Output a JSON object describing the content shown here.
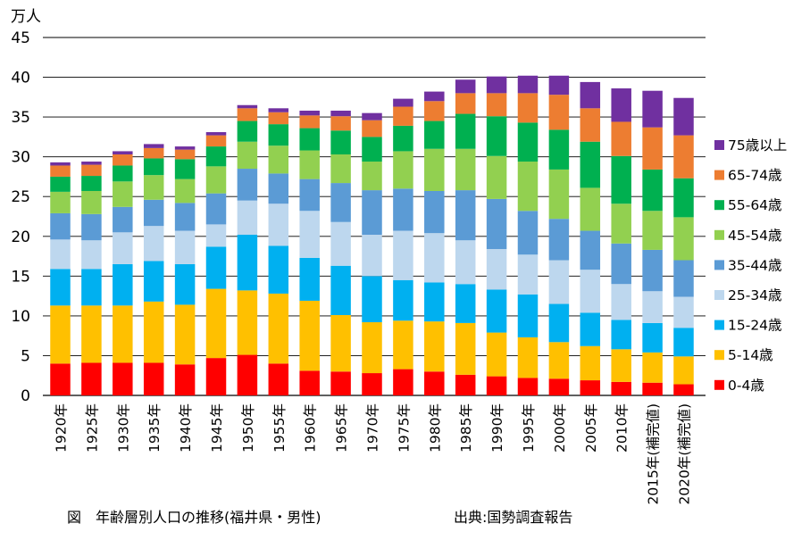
{
  "chart_data": {
    "type": "bar",
    "stacked": true,
    "title": "",
    "ylabel": "万人",
    "xlabel": "",
    "ylim": [
      0,
      45
    ],
    "yticks": [
      0,
      5,
      10,
      15,
      20,
      25,
      30,
      35,
      40,
      45
    ],
    "grid": true,
    "legend_position": "right",
    "categories": [
      "1920年",
      "1925年",
      "1930年",
      "1935年",
      "1940年",
      "1945年",
      "1950年",
      "1955年",
      "1960年",
      "1965年",
      "1970年",
      "1975年",
      "1980年",
      "1985年",
      "1990年",
      "1995年",
      "2000年",
      "2005年",
      "2010年",
      "2015年(補完値)",
      "2020年(補完値)"
    ],
    "series": [
      {
        "name": "0-4歳",
        "color": "#FF0000",
        "values": [
          4.0,
          4.1,
          4.1,
          4.1,
          3.9,
          4.7,
          5.1,
          4.0,
          3.1,
          3.0,
          2.8,
          3.3,
          3.0,
          2.6,
          2.4,
          2.2,
          2.1,
          1.9,
          1.7,
          1.6,
          1.4
        ]
      },
      {
        "name": "5-14歳",
        "color": "#FFC000",
        "values": [
          7.3,
          7.2,
          7.2,
          7.7,
          7.5,
          8.7,
          8.1,
          8.8,
          8.8,
          7.1,
          6.4,
          6.1,
          6.3,
          6.5,
          5.5,
          5.1,
          4.6,
          4.3,
          4.1,
          3.8,
          3.5
        ]
      },
      {
        "name": "15-24歳",
        "color": "#00B0F0",
        "values": [
          4.6,
          4.6,
          5.2,
          5.1,
          5.1,
          5.3,
          7.0,
          6.0,
          5.4,
          6.2,
          5.8,
          5.1,
          4.9,
          4.9,
          5.4,
          5.4,
          4.8,
          4.2,
          3.7,
          3.7,
          3.6
        ]
      },
      {
        "name": "25-34歳",
        "color": "#BDD7EE",
        "values": [
          3.7,
          3.6,
          4.0,
          4.4,
          4.2,
          2.8,
          4.3,
          5.3,
          5.9,
          5.5,
          5.2,
          6.2,
          6.2,
          5.5,
          5.1,
          5.0,
          5.5,
          5.4,
          4.5,
          4.0,
          3.9
        ]
      },
      {
        "name": "35-44歳",
        "color": "#5B9BD5",
        "values": [
          3.3,
          3.3,
          3.2,
          3.3,
          3.5,
          3.9,
          4.0,
          3.8,
          4.0,
          4.9,
          5.6,
          5.3,
          5.3,
          6.3,
          6.3,
          5.5,
          5.2,
          4.9,
          5.1,
          5.2,
          4.6
        ]
      },
      {
        "name": "45-54歳",
        "color": "#92D050",
        "values": [
          2.7,
          2.9,
          3.2,
          3.1,
          3.0,
          3.4,
          3.4,
          3.5,
          3.6,
          3.6,
          3.6,
          4.7,
          5.3,
          5.2,
          5.4,
          6.2,
          6.2,
          5.4,
          5.0,
          4.9,
          5.4
        ]
      },
      {
        "name": "55-64歳",
        "color": "#00B050",
        "values": [
          1.9,
          1.9,
          2.0,
          2.1,
          2.5,
          2.5,
          2.6,
          2.7,
          2.8,
          3.0,
          3.1,
          3.2,
          3.5,
          4.4,
          5.0,
          4.9,
          5.0,
          5.8,
          6.0,
          5.2,
          4.9
        ]
      },
      {
        "name": "65-74歳",
        "color": "#ED7D31",
        "values": [
          1.4,
          1.4,
          1.4,
          1.3,
          1.2,
          1.4,
          1.6,
          1.5,
          1.6,
          1.8,
          2.1,
          2.4,
          2.5,
          2.6,
          2.9,
          3.7,
          4.4,
          4.2,
          4.3,
          5.3,
          5.4
        ]
      },
      {
        "name": "75歳以上",
        "color": "#7030A0",
        "values": [
          0.4,
          0.4,
          0.4,
          0.5,
          0.4,
          0.4,
          0.4,
          0.5,
          0.6,
          0.7,
          0.9,
          1.0,
          1.2,
          1.7,
          2.1,
          2.2,
          2.4,
          3.3,
          4.2,
          4.6,
          4.7
        ]
      }
    ]
  },
  "footer": {
    "caption": "図　年齢層別人口の推移(福井県・男性)",
    "source": "出典:国勢調査報告"
  }
}
